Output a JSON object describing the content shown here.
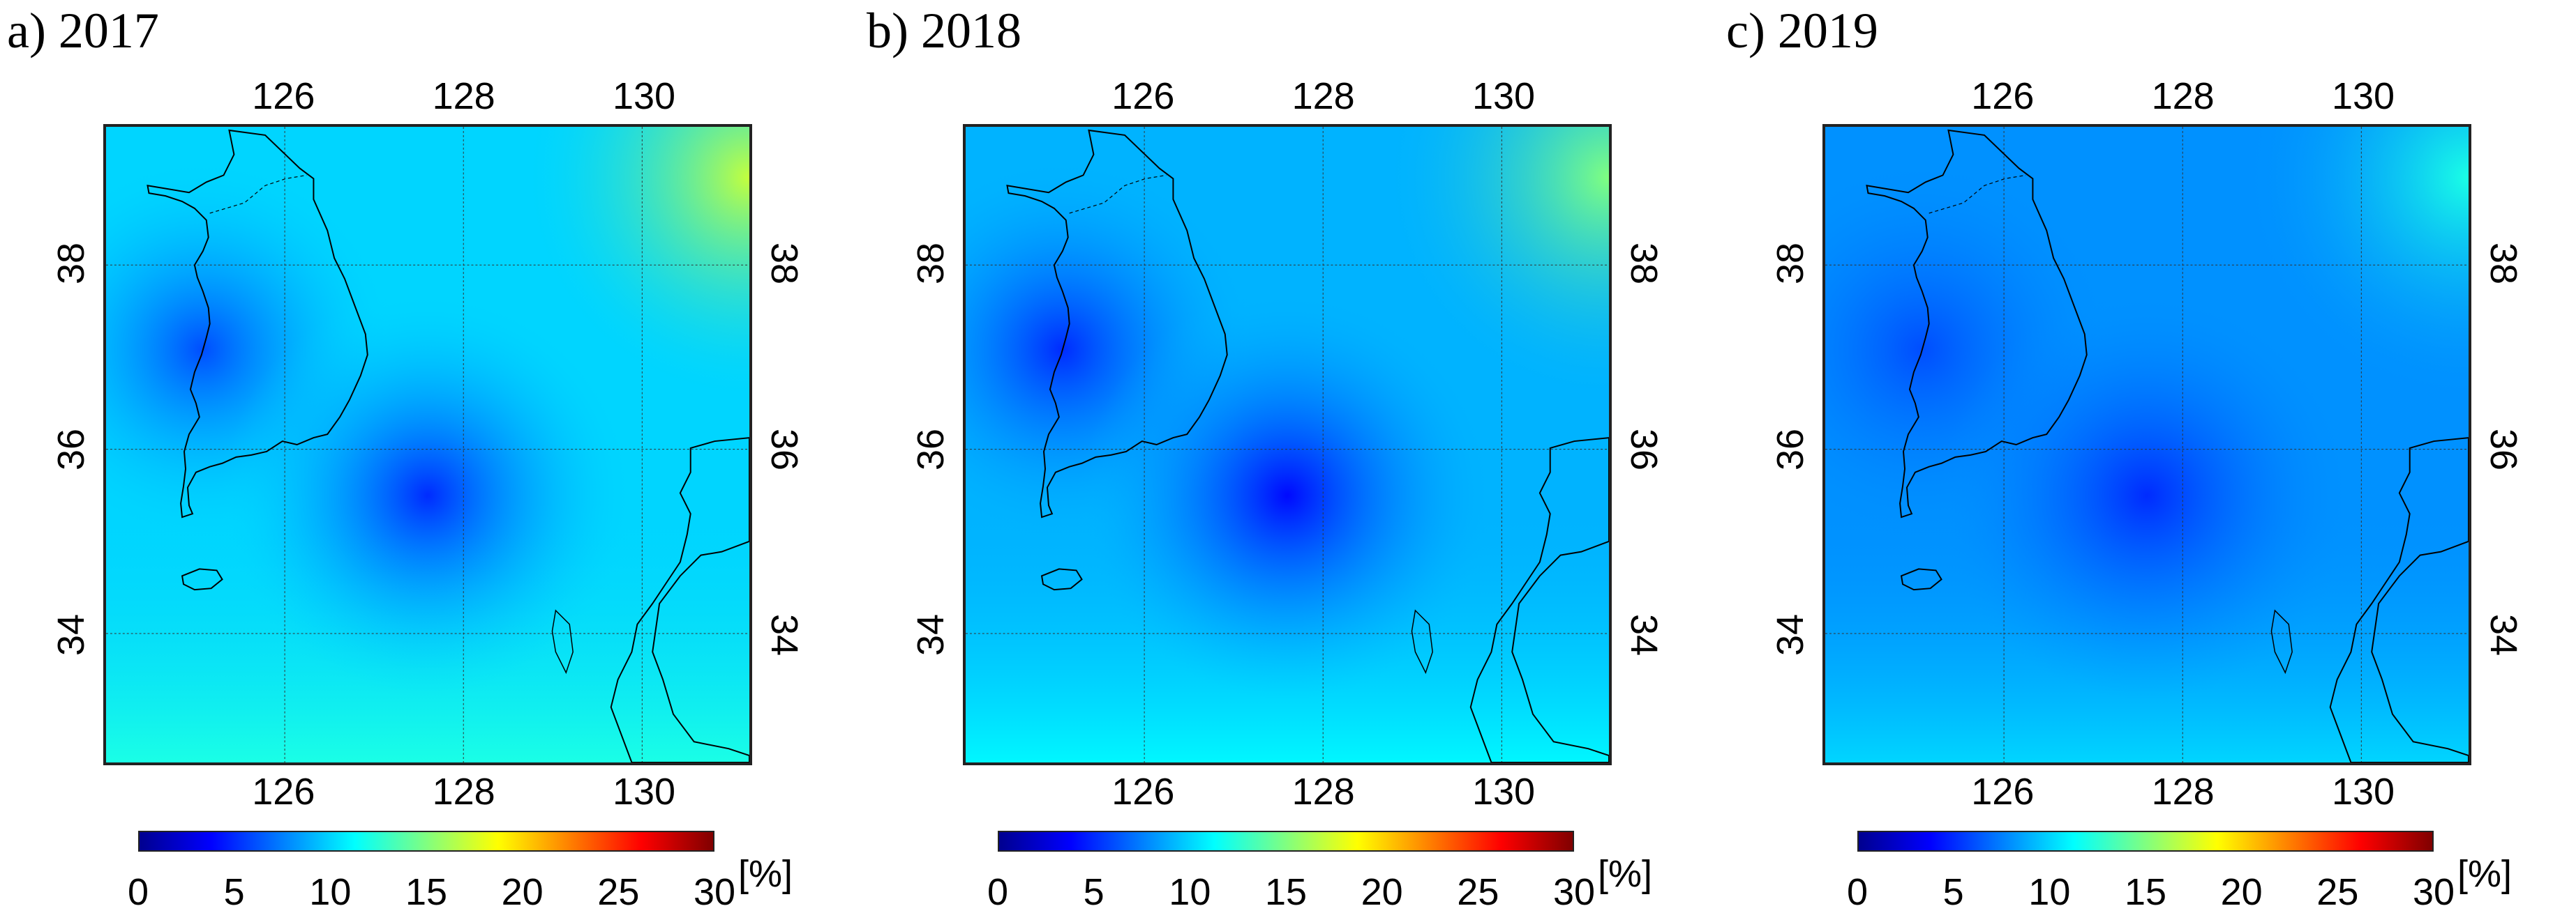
{
  "figure": {
    "colormap": [
      "#00008f",
      "#0000ff",
      "#0080ff",
      "#00ffff",
      "#80ff80",
      "#ffff00",
      "#ff8000",
      "#ff0000",
      "#800000"
    ],
    "colorbar": {
      "ticks": [
        "0",
        "5",
        "10",
        "15",
        "20",
        "25",
        "30"
      ],
      "unit": "[%]",
      "range": [
        0,
        30
      ]
    },
    "lon_ticks": [
      "126",
      "128",
      "130"
    ],
    "lat_ticks": [
      "38",
      "36",
      "34"
    ],
    "extent": {
      "lon": [
        124.0,
        131.2
      ],
      "lat": [
        32.6,
        39.5
      ]
    },
    "panels": [
      {
        "title": "a) 2017",
        "mean_pct": 10,
        "ne_high_pct": 17,
        "south_pct": 12,
        "core_low_pct": 5
      },
      {
        "title": "b) 2018",
        "mean_pct": 9,
        "ne_high_pct": 15,
        "south_pct": 11,
        "core_low_pct": 4
      },
      {
        "title": "c) 2019",
        "mean_pct": 8,
        "ne_high_pct": 12,
        "south_pct": 10,
        "core_low_pct": 5
      }
    ]
  }
}
